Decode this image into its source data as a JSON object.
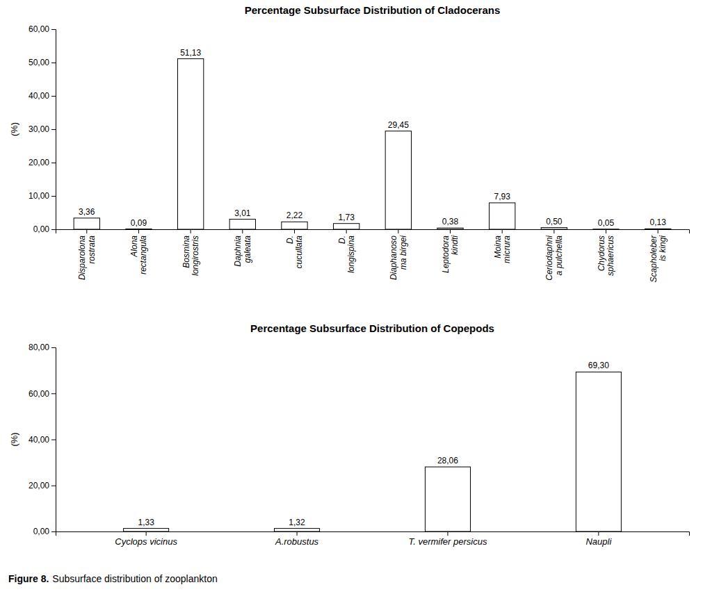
{
  "chart_data": [
    {
      "type": "bar",
      "title": "Percentage Subsurface Distribution of Cladocerans",
      "ylabel": "(%)",
      "categories": [
        "Disparolona\nrostrata",
        "Alona\nrectangula",
        "Bosmina\nlongirostris",
        "Daphnia\ngaleata",
        "D.\ncucullata",
        "D.\nlongispina",
        "Diaphanoso\nma birgei",
        "Leptodora\nkindti",
        "Moina\nmicrura",
        "Ceriodaphni\na pulchella",
        "Chydorus\nsphaericus",
        "Scapholeber\nis kingi"
      ],
      "values": [
        3.36,
        0.09,
        51.13,
        3.01,
        2.22,
        1.73,
        29.45,
        0.38,
        7.93,
        0.5,
        0.05,
        0.13
      ],
      "value_labels": [
        "3,36",
        "0,09",
        "51,13",
        "3,01",
        "2,22",
        "1,73",
        "29,45",
        "0,38",
        "7,93",
        "0,50",
        "0,05",
        "0,13"
      ],
      "data_labels": true,
      "color": "#ffffff",
      "ylim": [
        0,
        60
      ],
      "yticks": [
        {
          "value": 0,
          "label": "0,00"
        },
        {
          "value": 10,
          "label": "10,00"
        },
        {
          "value": 20,
          "label": "20,00"
        },
        {
          "value": 30,
          "label": "30,00"
        },
        {
          "value": 40,
          "label": "40,00"
        },
        {
          "value": 50,
          "label": "50,00"
        },
        {
          "value": 60,
          "label": "60,00"
        }
      ],
      "grid": false
    },
    {
      "type": "bar",
      "title": "Percentage Subsurface Distribution of Copepods",
      "ylabel": "(%)",
      "categories": [
        "Cyclops vicinus",
        "A.robustus",
        "T. vermifer persicus",
        "Naupli"
      ],
      "values": [
        1.33,
        1.32,
        28.06,
        69.3
      ],
      "value_labels": [
        "1,33",
        "1,32",
        "28,06",
        "69,30"
      ],
      "data_labels": true,
      "color": "#ffffff",
      "ylim": [
        0,
        80
      ],
      "yticks": [
        {
          "value": 0,
          "label": "0,00"
        },
        {
          "value": 20,
          "label": "20,00"
        },
        {
          "value": 40,
          "label": "40,00"
        },
        {
          "value": 60,
          "label": "60,00"
        },
        {
          "value": 80,
          "label": "80,00"
        }
      ],
      "grid": false
    }
  ],
  "caption_bold": "Figure 8.",
  "caption": "Subsurface distribution of zooplankton"
}
